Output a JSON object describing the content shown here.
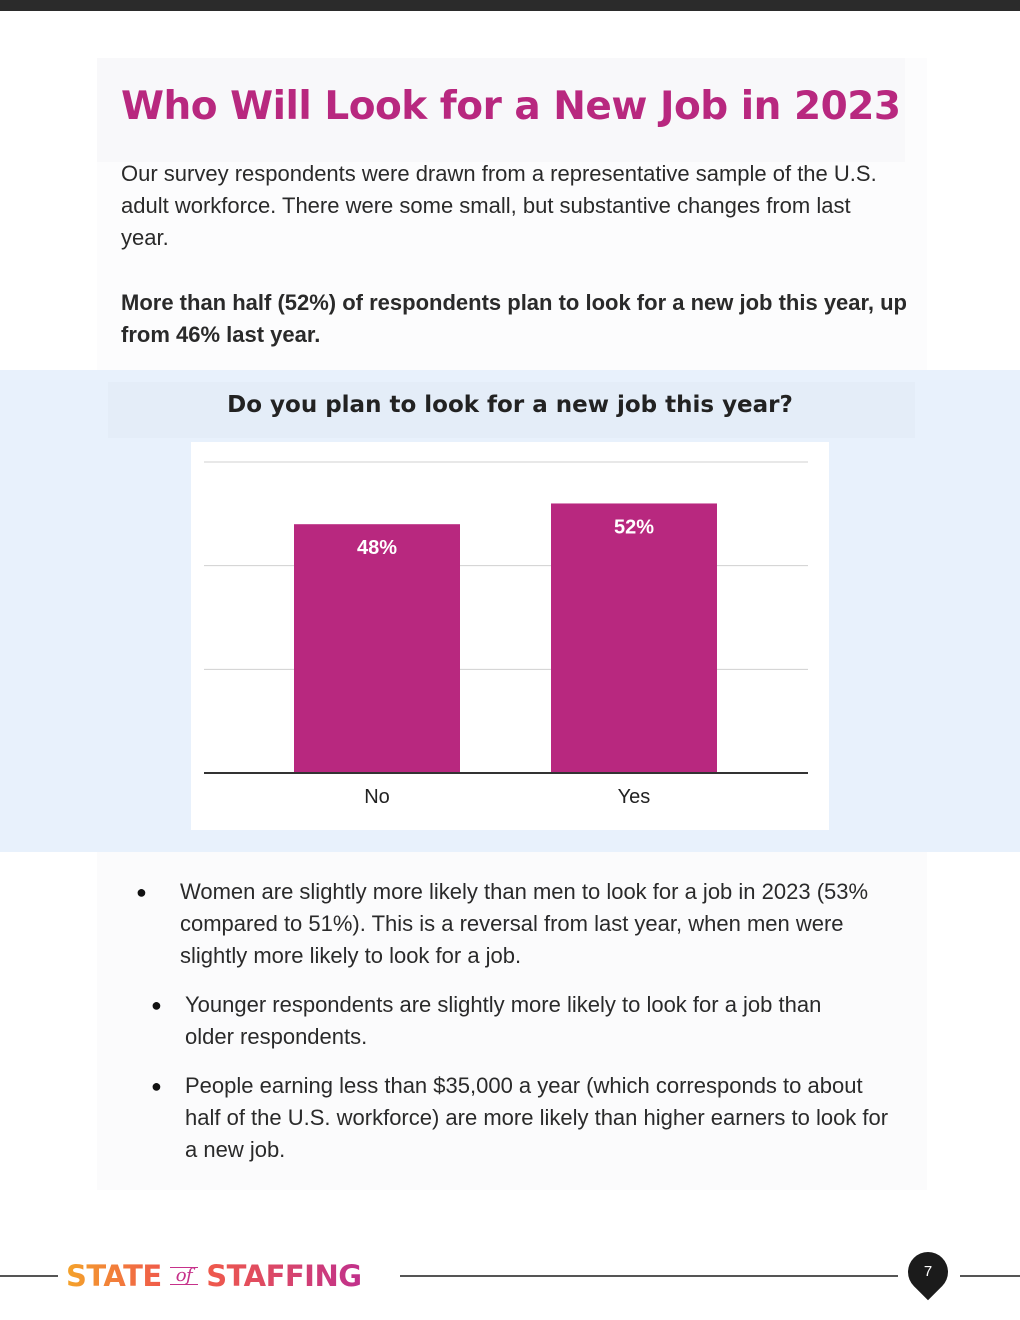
{
  "page": {
    "title": "Who Will Look for a New Job in 2023",
    "intro": "Our survey respondents were drawn from a representative sample of the U.S. adult workforce. There were some small, but substantive changes from last year.",
    "highlight": "More than half (52%) of respondents plan to look for a new job this year, up from 46% last year.",
    "bullets": [
      "Women are slightly more likely than men to look for a job in 2023 (53% compared to 51%). This is a reversal from last year, when men were slightly more likely to look for a job.",
      "Younger respondents are slightly more likely to look for a job than older respondents.",
      "People earning less than $35,000 a year (which corresponds to about half of the U.S. workforce) are more likely than higher earners to look for a new job."
    ],
    "bullet_symbol": "●"
  },
  "chart_data": {
    "type": "bar",
    "title": "Do you plan to look for a new job this year?",
    "categories": [
      "No",
      "Yes"
    ],
    "values": [
      48,
      52
    ],
    "value_labels": [
      "48%",
      "52%"
    ],
    "xlabel": "",
    "ylabel": "",
    "ylim": [
      0,
      60
    ],
    "grid": true,
    "bar_color": "#b8287f",
    "label_color": "#ffffff"
  },
  "footer": {
    "brand_state": "STATE",
    "brand_of": "of",
    "brand_staffing": "STAFFING",
    "page_number": "7"
  },
  "colors": {
    "accent": "#b8287f",
    "chart_background": "#e8f1fc"
  }
}
